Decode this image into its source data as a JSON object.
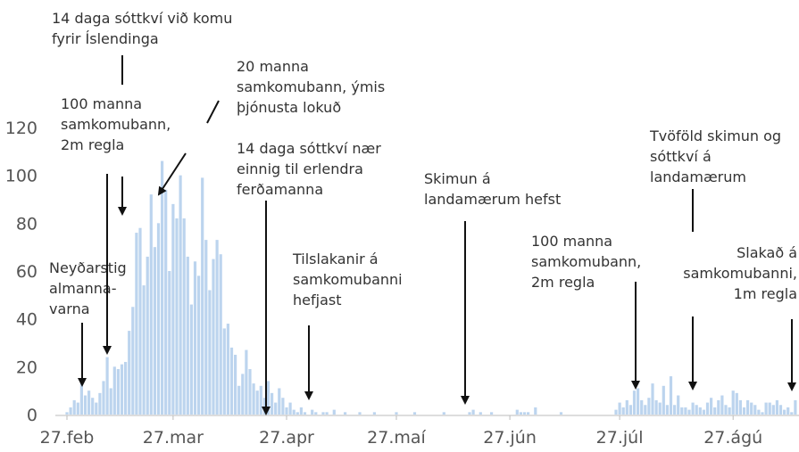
{
  "chart_data": {
    "type": "bar",
    "color": "#bcd4ee",
    "categories": [
      "27.feb",
      null,
      null,
      null,
      null,
      null,
      null,
      null,
      null,
      null,
      null,
      null,
      null,
      null,
      null,
      null,
      null,
      null,
      null,
      null,
      null,
      null,
      null,
      null,
      null,
      null,
      null,
      null,
      null,
      "27.mar",
      null,
      null,
      null,
      null,
      null,
      null,
      null,
      null,
      null,
      null,
      null,
      null,
      null,
      null,
      null,
      null,
      null,
      null,
      null,
      null,
      null,
      null,
      null,
      null,
      null,
      null,
      null,
      null,
      null,
      null,
      "27.apr",
      null,
      null,
      null,
      null,
      null,
      null,
      null,
      null,
      null,
      null,
      null,
      null,
      null,
      null,
      null,
      null,
      null,
      null,
      null,
      null,
      null,
      null,
      null,
      null,
      null,
      null,
      null,
      null,
      null,
      "27.maí",
      null,
      null,
      null,
      null,
      null,
      null,
      null,
      null,
      null,
      null,
      null,
      null,
      null,
      null,
      null,
      null,
      null,
      null,
      null,
      null,
      null,
      null,
      null,
      null,
      null,
      null,
      null,
      null,
      null,
      null,
      "27.jún",
      null,
      null,
      null,
      null,
      null,
      null,
      null,
      null,
      null,
      null,
      null,
      null,
      null,
      null,
      null,
      null,
      null,
      null,
      null,
      null,
      null,
      null,
      null,
      null,
      null,
      null,
      null,
      null,
      null,
      "27.júl",
      null,
      null,
      null,
      null,
      null,
      null,
      null,
      null,
      null,
      null,
      null,
      null,
      null,
      null,
      null,
      null,
      null,
      null,
      null,
      null,
      null,
      null,
      null,
      null,
      null,
      null,
      null,
      null,
      null,
      null,
      "27.ágú",
      null,
      null,
      null,
      null,
      null,
      null,
      null,
      null,
      null,
      null,
      null,
      null,
      null,
      null,
      null,
      null,
      null
    ],
    "values": [
      1,
      3,
      6,
      5,
      13,
      8,
      10,
      7,
      5,
      9,
      14,
      24,
      11,
      20,
      19,
      21,
      22,
      35,
      45,
      76,
      78,
      54,
      66,
      92,
      70,
      80,
      106,
      94,
      60,
      88,
      82,
      100,
      82,
      66,
      46,
      64,
      58,
      99,
      73,
      52,
      65,
      73,
      67,
      36,
      38,
      28,
      25,
      12,
      17,
      27,
      19,
      13,
      10,
      12,
      7,
      14,
      9,
      5,
      11,
      7,
      3,
      5,
      2,
      1,
      3,
      1,
      0,
      2,
      1,
      0,
      1,
      1,
      0,
      2,
      0,
      0,
      1,
      0,
      0,
      0,
      1,
      0,
      0,
      0,
      1,
      0,
      0,
      0,
      0,
      0,
      1,
      0,
      0,
      0,
      0,
      1,
      0,
      0,
      0,
      0,
      0,
      0,
      0,
      1,
      0,
      0,
      0,
      0,
      0,
      0,
      1,
      2,
      0,
      1,
      0,
      0,
      1,
      0,
      0,
      0,
      0,
      0,
      0,
      2,
      1,
      1,
      1,
      0,
      3,
      0,
      0,
      0,
      0,
      0,
      0,
      1,
      0,
      0,
      0,
      0,
      0,
      0,
      0,
      0,
      0,
      0,
      0,
      0,
      0,
      0,
      2,
      5,
      3,
      6,
      4,
      10,
      11,
      6,
      4,
      7,
      13,
      6,
      5,
      12,
      4,
      16,
      4,
      8,
      3,
      3,
      2,
      5,
      4,
      3,
      2,
      5,
      7,
      3,
      6,
      8,
      4,
      3,
      10,
      9,
      6,
      3,
      6,
      5,
      4,
      2,
      1,
      5,
      5,
      4,
      6,
      4,
      2,
      3,
      1,
      6
    ],
    "ylim": [
      0,
      125
    ],
    "yticks": [
      0,
      20,
      40,
      60,
      80,
      100,
      120
    ],
    "annotations": [
      {
        "lines": [
          "14 daga sóttkví við komu",
          "fyrir Íslendinga"
        ]
      },
      {
        "lines": [
          "100 manna",
          "samkomubann,",
          "2m regla"
        ]
      },
      {
        "lines": [
          "20 manna",
          "samkomubann, ýmis",
          "þjónusta lokuð"
        ]
      },
      {
        "lines": [
          "14 daga sóttkví nær",
          "einnig til erlendra",
          "ferðamanna"
        ]
      },
      {
        "lines": [
          "Neyðarstig",
          "almanna-",
          "varna"
        ]
      },
      {
        "lines": [
          "Tilslakanir á",
          "samkomubanni",
          "hefjast"
        ]
      },
      {
        "lines": [
          "Skimun á",
          "landamærum hefst"
        ]
      },
      {
        "lines": [
          "100 manna",
          "samkomubann,",
          "2m regla"
        ]
      },
      {
        "lines": [
          "Tvöföld skimun og",
          "sóttkví á",
          "landamærum"
        ]
      },
      {
        "lines": [
          "Slakað á",
          "samkomubanni,",
          "1m regla"
        ]
      }
    ]
  }
}
